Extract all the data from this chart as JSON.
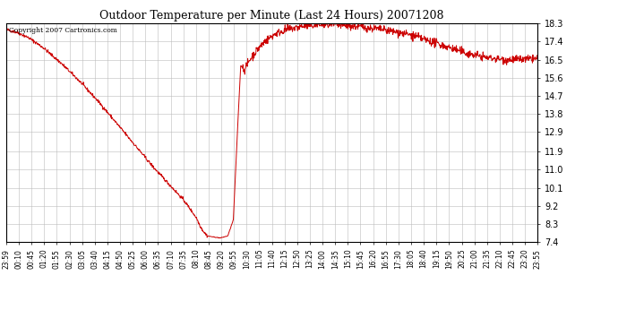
{
  "title": "Outdoor Temperature per Minute (Last 24 Hours) 20071208",
  "copyright_text": "Copyright 2007 Cartronics.com",
  "line_color": "#cc0000",
  "bg_color": "#ffffff",
  "plot_bg_color": "#ffffff",
  "grid_color": "#bbbbbb",
  "ylim": [
    7.4,
    18.3
  ],
  "yticks": [
    7.4,
    8.3,
    9.2,
    10.1,
    11.0,
    11.9,
    12.9,
    13.8,
    14.7,
    15.6,
    16.5,
    17.4,
    18.3
  ],
  "x_labels": [
    "23:59",
    "00:10",
    "00:45",
    "01:20",
    "01:55",
    "02:30",
    "03:05",
    "03:40",
    "04:15",
    "04:50",
    "05:25",
    "06:00",
    "06:35",
    "07:10",
    "07:35",
    "08:10",
    "08:45",
    "09:20",
    "09:55",
    "10:30",
    "11:05",
    "11:40",
    "12:15",
    "12:50",
    "13:25",
    "14:00",
    "14:35",
    "15:10",
    "15:45",
    "16:20",
    "16:55",
    "17:30",
    "18:05",
    "18:40",
    "19:15",
    "19:50",
    "20:25",
    "21:00",
    "21:35",
    "22:10",
    "22:45",
    "23:20",
    "23:55"
  ],
  "ctrl_x": [
    0,
    30,
    60,
    100,
    150,
    200,
    250,
    300,
    350,
    400,
    450,
    480,
    500,
    515,
    525,
    535,
    545,
    560,
    580,
    600,
    615,
    625,
    635,
    645,
    660,
    680,
    700,
    730,
    760,
    800,
    850,
    900,
    950,
    1000,
    1050,
    1100,
    1150,
    1200,
    1250,
    1300,
    1350,
    1400,
    1439
  ],
  "ctrl_y": [
    18.0,
    17.85,
    17.6,
    17.1,
    16.3,
    15.4,
    14.4,
    13.3,
    12.2,
    11.1,
    10.1,
    9.5,
    9.0,
    8.6,
    8.2,
    7.9,
    7.7,
    7.65,
    7.6,
    7.7,
    8.5,
    12.5,
    16.2,
    16.0,
    16.5,
    17.0,
    17.4,
    17.8,
    18.0,
    18.15,
    18.25,
    18.2,
    18.15,
    18.05,
    17.9,
    17.7,
    17.4,
    17.1,
    16.8,
    16.6,
    16.5,
    16.5,
    16.55
  ]
}
